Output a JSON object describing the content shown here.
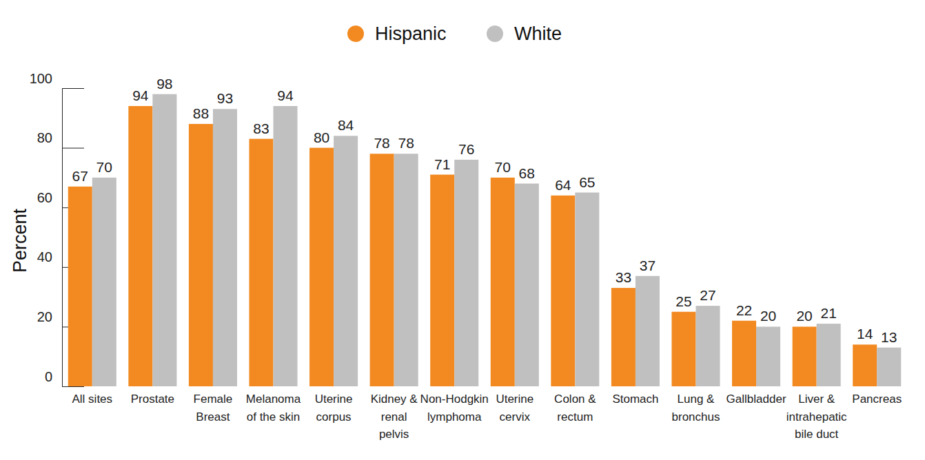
{
  "chart_data": {
    "type": "bar",
    "ylabel": "Percent",
    "categories": [
      "All sites",
      "Prostate",
      "Female Breast",
      "Melanoma of the skin",
      "Uterine corpus",
      "Kidney & renal pelvis",
      "Non-Hodgkin lymphoma",
      "Uterine cervix",
      "Colon & rectum",
      "Stomach",
      "Lung & bronchus",
      "Gallbladder",
      "Liver & intrahepatic bile duct",
      "Pancreas"
    ],
    "series": [
      {
        "name": "Hispanic",
        "color": "#f28a21",
        "values": [
          67,
          94,
          88,
          83,
          80,
          78,
          71,
          70,
          64,
          33,
          25,
          22,
          20,
          14
        ]
      },
      {
        "name": "White",
        "color": "#c0c0c0",
        "values": [
          70,
          98,
          93,
          94,
          84,
          78,
          76,
          68,
          65,
          37,
          27,
          20,
          21,
          13
        ]
      }
    ],
    "ylim": [
      0,
      100
    ],
    "yticks": [
      0,
      20,
      40,
      60,
      80,
      100
    ],
    "grid": false,
    "legend": "top",
    "data_labels": true
  }
}
